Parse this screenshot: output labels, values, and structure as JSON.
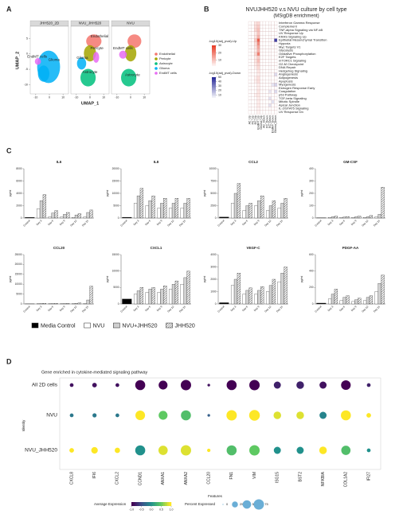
{
  "panel_labels": [
    "A",
    "B",
    "C",
    "D"
  ],
  "chart_data": [
    {
      "type": "umap",
      "facets": [
        "JHH520_2D",
        "NVU_JHH520",
        "NVU"
      ],
      "xlabel": "UMAP_1",
      "ylabel": "UMAP_2",
      "xlim": [
        -14,
        14
      ],
      "xticks": [
        -10,
        0,
        10
      ],
      "ylim": [
        -13,
        9
      ],
      "yticks": [
        -10,
        -5,
        0,
        5
      ],
      "clusters": [
        {
          "name": "Endothelial",
          "color": "#f4766d"
        },
        {
          "name": "Pericyte",
          "color": "#a3a500"
        },
        {
          "name": "Astrocyte",
          "color": "#00bf7d"
        },
        {
          "name": "Glioma",
          "color": "#00b0f6"
        },
        {
          "name": "EndMT cells",
          "color": "#e76bf3"
        }
      ]
    },
    {
      "type": "heatmap",
      "title": "NVUJHH520 v.s NVU culture by cell type",
      "subtitle": "(MSigDB enrichment)",
      "up_title": "-log10(adj_pval)-Up",
      "down_title": "-log10(adj_pval)-Down",
      "up_color": "#e8412c",
      "down_color": "#2b2d9a",
      "up_lim": [
        0,
        30
      ],
      "up_ticks": [
        10,
        20,
        30
      ],
      "down_lim": [
        0,
        50
      ],
      "down_ticks": [
        10,
        20,
        30,
        40,
        50
      ],
      "up_columns": 5,
      "columns": [
        "AC_Up",
        "PC_Up",
        "EC_Up",
        "EndMT_Up",
        "Glioma_Up",
        "AC_Down",
        "PC_Down",
        "EC_Down",
        "EndMT_Down",
        "Glioma_Down"
      ],
      "rows": [
        "Interferon Gamma Response",
        "Complement",
        "TNF-alpha Signaling via NF-kB",
        "UV Response Up",
        "KRAS Signaling Up",
        "Epithelial Mesenchymal Transition",
        "Hypoxia",
        "Myc Targets V1",
        "Glycolysis",
        "Oxidative Phosphorylation",
        "E2F Targets",
        "mTORC1 Signaling",
        "G2-M Checkpoint",
        "DNA Repair",
        "Hedgehog Signaling",
        "Angiogenesis",
        "Adipogenesis",
        "Apoptosis",
        "Myogenesis",
        "Estrogen Response Early",
        "Coagulation",
        "p53 Pathway",
        "TGF-beta Signaling",
        "Mitotic Spindle",
        "Apical Junction",
        "IL-2/STAT5 Signaling",
        "UV Response Dn"
      ],
      "values": [
        [
          0,
          0,
          4,
          6,
          0,
          0,
          0,
          0,
          0,
          0
        ],
        [
          0,
          0,
          5,
          8,
          0,
          0,
          0,
          0,
          0,
          0
        ],
        [
          0,
          0,
          6,
          10,
          0,
          0,
          0,
          0,
          0,
          0
        ],
        [
          0,
          0,
          3,
          9,
          0,
          0,
          0,
          0,
          0,
          0
        ],
        [
          0,
          0,
          4,
          12,
          0,
          0,
          0,
          0,
          0,
          0
        ],
        [
          0,
          0,
          8,
          25,
          0,
          0,
          0,
          0,
          0,
          45
        ],
        [
          0,
          0,
          5,
          18,
          0,
          0,
          0,
          0,
          0,
          0
        ],
        [
          0,
          0,
          4,
          14,
          0,
          0,
          0,
          0,
          0,
          0
        ],
        [
          0,
          0,
          3,
          12,
          0,
          0,
          0,
          0,
          0,
          0
        ],
        [
          0,
          0,
          6,
          20,
          0,
          0,
          0,
          0,
          0,
          0
        ],
        [
          0,
          0,
          3,
          8,
          0,
          0,
          0,
          0,
          0,
          0
        ],
        [
          0,
          0,
          4,
          10,
          0,
          0,
          0,
          0,
          0,
          0
        ],
        [
          0,
          0,
          3,
          7,
          0,
          0,
          0,
          0,
          0,
          0
        ],
        [
          0,
          0,
          2,
          6,
          0,
          0,
          0,
          0,
          0,
          0
        ],
        [
          0,
          0,
          0,
          4,
          0,
          0,
          0,
          0,
          0,
          0
        ],
        [
          0,
          0,
          0,
          3,
          0,
          0,
          0,
          0,
          0,
          8
        ],
        [
          0,
          0,
          2,
          5,
          0,
          0,
          0,
          0,
          0,
          0
        ],
        [
          0,
          0,
          2,
          5,
          0,
          0,
          0,
          0,
          0,
          0
        ],
        [
          0,
          0,
          0,
          3,
          0,
          0,
          0,
          0,
          6,
          10
        ],
        [
          0,
          0,
          0,
          3,
          0,
          0,
          0,
          0,
          0,
          0
        ],
        [
          0,
          0,
          0,
          4,
          0,
          0,
          0,
          5,
          0,
          8
        ],
        [
          0,
          0,
          2,
          4,
          0,
          0,
          0,
          0,
          0,
          0
        ],
        [
          0,
          0,
          0,
          3,
          0,
          0,
          0,
          6,
          0,
          0
        ],
        [
          0,
          0,
          0,
          3,
          0,
          0,
          0,
          0,
          7,
          0
        ],
        [
          0,
          0,
          0,
          3,
          0,
          0,
          0,
          6,
          0,
          0
        ],
        [
          0,
          0,
          0,
          2,
          0,
          0,
          0,
          0,
          0,
          0
        ],
        [
          0,
          0,
          0,
          2,
          0,
          0,
          0,
          0,
          0,
          0
        ]
      ]
    },
    {
      "type": "bar",
      "ylabel": "pg/ml",
      "categories": [
        "Control",
        "Day 3",
        "Day 6",
        "Day 9",
        "Day 12",
        "Day 15"
      ],
      "legend": [
        {
          "name": "Media Control",
          "color": "#000000"
        },
        {
          "name": "NVU",
          "color": "#ffffff"
        },
        {
          "name": "NVU+JHH520",
          "color": "#d0d0d0"
        },
        {
          "name": "JHH520",
          "color": "#ffffff",
          "hatch": true
        }
      ],
      "panels": [
        {
          "title": "IL6",
          "ylim": [
            0,
            8000
          ],
          "yticks": [
            0,
            2000,
            4000,
            6000,
            8000
          ],
          "series": [
            [
              100,
              null,
              null,
              null,
              null,
              null
            ],
            [
              null,
              1500,
              200,
              150,
              100,
              150
            ],
            [
              null,
              2800,
              800,
              600,
              500,
              900
            ],
            [
              null,
              3800,
              1200,
              900,
              700,
              1300
            ]
          ]
        },
        {
          "title": "IL8",
          "ylim": [
            0,
            20000
          ],
          "yticks": [
            0,
            5000,
            10000,
            15000,
            20000
          ],
          "series": [
            [
              300,
              null,
              null,
              null,
              null,
              null
            ],
            [
              null,
              6000,
              5000,
              4000,
              4000,
              4000
            ],
            [
              null,
              9000,
              7000,
              6000,
              6000,
              6000
            ],
            [
              null,
              12000,
              9000,
              8000,
              8000,
              8000
            ]
          ]
        },
        {
          "title": "CCL2",
          "ylim": [
            0,
            10000
          ],
          "yticks": [
            0,
            2500,
            5000,
            7500,
            10000
          ],
          "series": [
            [
              200,
              null,
              null,
              null,
              null,
              null
            ],
            [
              null,
              3000,
              1500,
              2500,
              1500,
              2000
            ],
            [
              null,
              5000,
              2500,
              3500,
              2500,
              3000
            ],
            [
              null,
              7000,
              3000,
              4500,
              3500,
              4000
            ]
          ]
        },
        {
          "title": "GM-CSF",
          "ylim": [
            0,
            400
          ],
          "yticks": [
            0,
            100,
            200,
            300,
            400
          ],
          "series": [
            [
              2,
              null,
              null,
              null,
              null,
              null
            ],
            [
              null,
              5,
              5,
              5,
              5,
              10
            ],
            [
              null,
              10,
              8,
              10,
              10,
              30
            ],
            [
              null,
              15,
              12,
              15,
              20,
              250
            ]
          ]
        },
        {
          "title": "CCL20",
          "ylim": [
            0,
            25000
          ],
          "yticks": [
            0,
            5000,
            10000,
            15000,
            20000,
            25000
          ],
          "series": [
            [
              50,
              null,
              null,
              null,
              null,
              null
            ],
            [
              null,
              100,
              100,
              100,
              100,
              200
            ],
            [
              null,
              200,
              200,
              200,
              300,
              2000
            ],
            [
              null,
              300,
              300,
              300,
              500,
              9000
            ]
          ]
        },
        {
          "title": "CXCL1",
          "ylim": [
            0,
            15000
          ],
          "yticks": [
            0,
            5000,
            10000,
            15000
          ],
          "series": [
            [
              1500,
              null,
              null,
              null,
              null,
              null
            ],
            [
              null,
              3000,
              3500,
              3500,
              4500,
              6000
            ],
            [
              null,
              4000,
              4500,
              4500,
              6000,
              8000
            ],
            [
              null,
              5000,
              5000,
              5500,
              7000,
              10000
            ]
          ]
        },
        {
          "title": "VEGF-C",
          "ylim": [
            0,
            4000
          ],
          "yticks": [
            0,
            1000,
            2000,
            3000,
            4000
          ],
          "series": [
            [
              100,
              null,
              null,
              null,
              null,
              null
            ],
            [
              null,
              1500,
              800,
              800,
              1000,
              1800
            ],
            [
              null,
              2000,
              1100,
              1100,
              1500,
              2500
            ],
            [
              null,
              2500,
              1300,
              1400,
              2000,
              3000
            ]
          ]
        },
        {
          "title": "PDGF-AA",
          "ylim": [
            0,
            600
          ],
          "yticks": [
            0,
            200,
            400,
            600
          ],
          "series": [
            [
              10,
              null,
              null,
              null,
              null,
              null
            ],
            [
              null,
              60,
              40,
              30,
              40,
              150
            ],
            [
              null,
              120,
              80,
              50,
              80,
              250
            ],
            [
              null,
              180,
              100,
              70,
              100,
              350
            ]
          ]
        }
      ]
    },
    {
      "type": "dot",
      "title": "Gene enriched in cytokine-mediated signaling pathway",
      "ylabel": "Identity",
      "xlabel": "Features",
      "rows": [
        "All 2D cells",
        "NVU",
        "NVU_JHH520"
      ],
      "features": [
        "CXCL8",
        "IFI6",
        "CXCL2",
        "CCND1",
        "ANXA1",
        "ANXA2",
        "CCL20",
        "FN1",
        "VIM",
        "ISG15",
        "BST2",
        "NFKBIA",
        "COL1A2",
        "IFI27"
      ],
      "avg_title": "Average Expression",
      "avg_lim": [
        -1,
        1
      ],
      "avg_ticks": [
        {
          "value": -1,
          "label": "-1.0"
        },
        {
          "value": -0.5,
          "label": "-0.5"
        },
        {
          "value": 0,
          "label": "0.0"
        },
        {
          "value": 0.5,
          "label": "0.5"
        },
        {
          "value": 1,
          "label": "1.0"
        }
      ],
      "pct_title": "Percent Expressed",
      "pct_ticks": [
        0,
        25,
        50,
        75
      ],
      "avg": [
        [
          -0.9,
          -0.9,
          -0.9,
          -1.0,
          -1.0,
          -1.0,
          -0.9,
          -1.0,
          -1.0,
          -0.8,
          -0.8,
          -0.9,
          -1.0,
          -0.8
        ],
        [
          -0.2,
          -0.2,
          -0.2,
          1.0,
          0.5,
          0.4,
          -0.4,
          1.0,
          1.0,
          0.9,
          0.9,
          -0.1,
          1.0,
          1.0
        ],
        [
          1.0,
          1.0,
          1.0,
          0.0,
          0.9,
          0.9,
          1.0,
          0.4,
          0.5,
          0.0,
          0.0,
          1.0,
          0.4,
          0.0
        ]
      ],
      "pct": [
        [
          10,
          15,
          10,
          70,
          55,
          75,
          5,
          70,
          75,
          35,
          40,
          35,
          65,
          10
        ],
        [
          10,
          12,
          10,
          65,
          55,
          70,
          5,
          75,
          80,
          40,
          40,
          35,
          70,
          15
        ],
        [
          15,
          30,
          20,
          70,
          60,
          75,
          8,
          70,
          75,
          35,
          35,
          40,
          60,
          10
        ]
      ]
    }
  ]
}
